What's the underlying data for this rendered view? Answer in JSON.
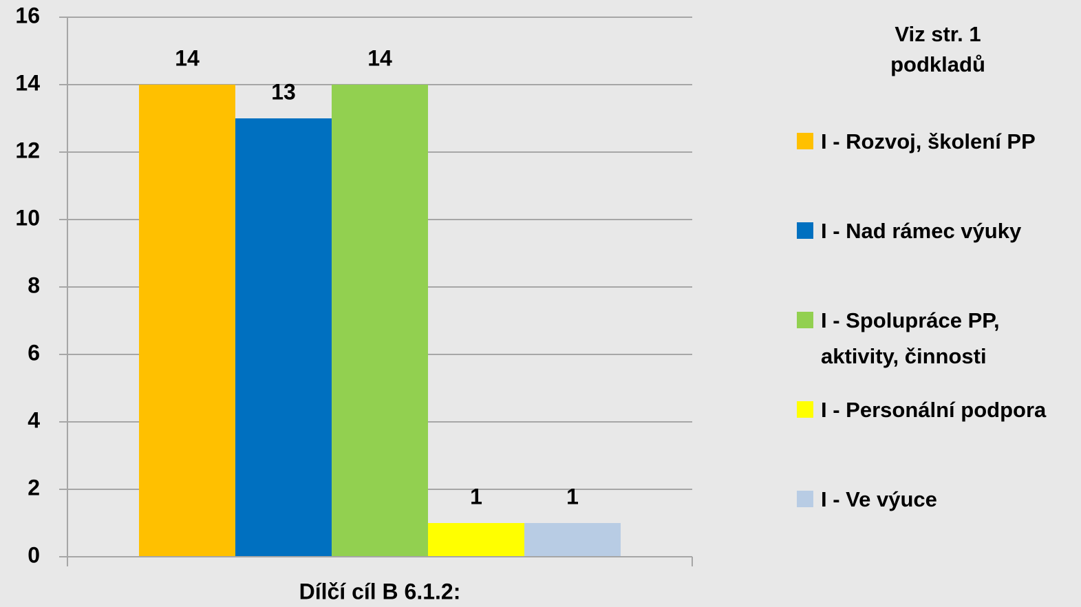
{
  "chart_data": {
    "type": "bar",
    "categories": [
      "Dílčí cíl B 6.1.2:"
    ],
    "series": [
      {
        "name": "I - Rozvoj, školení PP",
        "color": "#ffc000",
        "values": [
          14
        ]
      },
      {
        "name": "I - Nad rámec výuky",
        "color": "#0070c0",
        "values": [
          13
        ]
      },
      {
        "name": "I - Spolupráce PP, aktivity, činnosti",
        "color": "#92d050",
        "values": [
          14
        ]
      },
      {
        "name": "I - Personální podpora",
        "color": "#ffff00",
        "values": [
          1
        ]
      },
      {
        "name": "I - Ve výuce",
        "color": "#b8cce4",
        "values": [
          1
        ]
      }
    ],
    "legend_title": "Viz str. 1 podkladů",
    "legend": "right",
    "ylim": [
      0,
      16
    ],
    "yticks": [
      0,
      2,
      4,
      6,
      8,
      10,
      12,
      14,
      16
    ],
    "grid": true
  }
}
